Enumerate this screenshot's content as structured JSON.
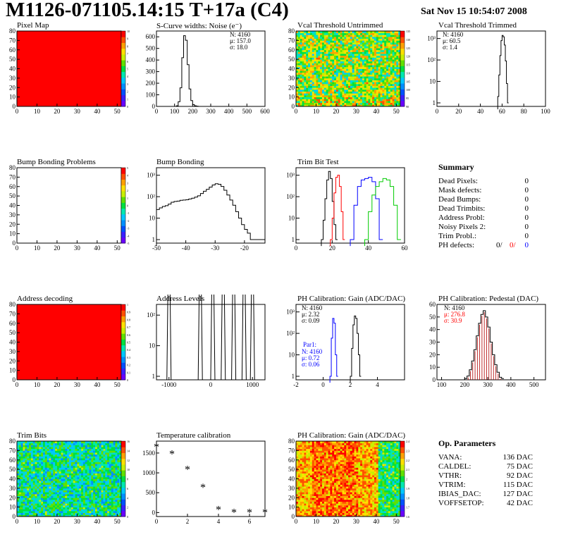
{
  "header": {
    "title": "M1126-071105.14:15 T+17a (C4)",
    "date": "Sat Nov 15 10:54:07 2008"
  },
  "colors": {
    "fill_red": "#ff0000",
    "series_black": "#000000",
    "series_red": "#ff0000",
    "series_blue": "#0000ff",
    "series_green": "#00cc00",
    "pedestal_hatch": "#b00000"
  },
  "colz_ticks": {
    "pixel_map": [
      "0",
      "1",
      "2",
      "3",
      "4",
      "5",
      "6",
      "7",
      "8",
      "9",
      "10"
    ],
    "vcal": [
      "90",
      "95",
      "100",
      "105",
      "110",
      "115",
      "120",
      "125",
      "130",
      "135"
    ],
    "bump": [
      "-5",
      "-4",
      "-3",
      "-2",
      "-1",
      "0",
      "1",
      "2",
      "3",
      "4",
      "5"
    ],
    "address": [
      "0",
      "0.1",
      "0.2",
      "0.3",
      "0.4",
      "0.5",
      "0.6",
      "0.7",
      "0.8",
      "0.9",
      "1"
    ],
    "trim_bits": [
      "0",
      "2",
      "4",
      "6",
      "8",
      "10",
      "12",
      "14",
      "16"
    ],
    "gain": [
      "1.6",
      "1.7",
      "1.8",
      "1.9",
      "2",
      "2.1",
      "2.2",
      "2.3",
      "2.4"
    ]
  },
  "summary": {
    "title": "Summary",
    "items": [
      {
        "label": "Dead Pixels:",
        "value": "0"
      },
      {
        "label": "Mask defects:",
        "value": "0"
      },
      {
        "label": "Dead Bumps:",
        "value": "0"
      },
      {
        "label": "Dead Trimbits:",
        "value": "0"
      },
      {
        "label": "Address Probl:",
        "value": "0"
      },
      {
        "label": "Noisy Pixels 2:",
        "value": "0"
      },
      {
        "label": "Trim Probl.:",
        "value": "0"
      }
    ],
    "ph_label": "PH defects:",
    "ph_values": [
      "0/",
      "0/",
      "0"
    ]
  },
  "op_params": {
    "title": "Op. Parameters",
    "items": [
      {
        "label": "VANA:",
        "value": "136 DAC"
      },
      {
        "label": "CALDEL:",
        "value": "75 DAC"
      },
      {
        "label": "VTHR:",
        "value": "92 DAC"
      },
      {
        "label": "VTRIM:",
        "value": "115 DAC"
      },
      {
        "label": "IBIAS_DAC:",
        "value": "127 DAC"
      },
      {
        "label": "VOFFSETOP:",
        "value": "42 DAC"
      }
    ]
  },
  "chart_data": [
    {
      "id": "pixel_map",
      "type": "heatmap",
      "title": "Pixel Map",
      "xlim": [
        0,
        52
      ],
      "ylim": [
        0,
        80
      ],
      "xticks": [
        "0",
        "10",
        "20",
        "30",
        "40",
        "50"
      ],
      "yticks": [
        "0",
        "10",
        "20",
        "30",
        "40",
        "50",
        "60",
        "70",
        "80"
      ],
      "zlim": [
        0,
        10
      ],
      "fill": "uniform maximum (all pixels 10)"
    },
    {
      "id": "scurve",
      "type": "line",
      "title": "S-Curve widths: Noise (e⁻)",
      "xlim": [
        0,
        600
      ],
      "ylim": [
        0,
        650
      ],
      "xticks": [
        "0",
        "100",
        "200",
        "300",
        "400",
        "500",
        "600"
      ],
      "yticks": [
        "0",
        "100",
        "200",
        "300",
        "400",
        "500",
        "600"
      ],
      "stats": {
        "N": "4160",
        "mean": "157.0",
        "sigma": "18.0"
      },
      "x": [
        100,
        110,
        120,
        130,
        140,
        150,
        160,
        170,
        180,
        190,
        200,
        210,
        220,
        230
      ],
      "values": [
        0,
        5,
        40,
        160,
        420,
        610,
        570,
        360,
        150,
        50,
        15,
        5,
        2,
        0
      ]
    },
    {
      "id": "vcal",
      "type": "heatmap",
      "title": "Vcal Threshold Untrimmed",
      "xlim": [
        0,
        52
      ],
      "ylim": [
        0,
        80
      ],
      "xticks": [
        "0",
        "10",
        "20",
        "30",
        "40",
        "50"
      ],
      "yticks": [
        "0",
        "10",
        "20",
        "30",
        "40",
        "50",
        "60",
        "70",
        "80"
      ],
      "zlim": [
        90,
        135
      ],
      "fill": "noisy, mostly 100-125"
    },
    {
      "id": "vcal_trim",
      "type": "line",
      "title": "Vcal Threshold Trimmed",
      "xlim": [
        0,
        100
      ],
      "log_y": true,
      "xticks": [
        "0",
        "20",
        "40",
        "60",
        "80",
        "100"
      ],
      "yticks": [
        "1",
        "10",
        "10²",
        "10³"
      ],
      "stats": {
        "N": "4160",
        "mean": "60.5",
        "sigma": "1.4"
      },
      "x": [
        56,
        57,
        58,
        59,
        60,
        61,
        62,
        63,
        64,
        65
      ],
      "values": [
        2,
        20,
        160,
        800,
        1400,
        1200,
        500,
        90,
        8,
        1
      ]
    },
    {
      "id": "bump_problems",
      "type": "heatmap",
      "title": "Bump Bonding Problems",
      "xlim": [
        0,
        52
      ],
      "ylim": [
        0,
        80
      ],
      "xticks": [
        "0",
        "10",
        "20",
        "30",
        "40",
        "50"
      ],
      "yticks": [
        "0",
        "10",
        "20",
        "30",
        "40",
        "50",
        "60",
        "70",
        "80"
      ],
      "zlim": [
        -5,
        5
      ],
      "fill": "empty"
    },
    {
      "id": "bump_bonding",
      "type": "line",
      "title": "Bump Bonding",
      "xlim": [
        -50,
        -13
      ],
      "log_y": true,
      "xticks": [
        "-50",
        "-40",
        "-30",
        "-20"
      ],
      "yticks": [
        "1",
        "10",
        "10²",
        "10³"
      ],
      "x": [
        -50,
        -49,
        -48,
        -47,
        -46,
        -45,
        -44,
        -43,
        -42,
        -41,
        -40,
        -39,
        -38,
        -37,
        -36,
        -35,
        -34,
        -33,
        -32,
        -31,
        -30,
        -29,
        -28,
        -27,
        -26,
        -25,
        -24,
        -23,
        -22,
        -21,
        -20,
        -19,
        -18,
        -17,
        -16,
        -15,
        -14
      ],
      "values": [
        25,
        30,
        35,
        38,
        45,
        55,
        60,
        62,
        68,
        70,
        72,
        78,
        85,
        95,
        110,
        140,
        180,
        220,
        280,
        350,
        400,
        380,
        300,
        200,
        120,
        70,
        40,
        20,
        10,
        5,
        3,
        2,
        1,
        1,
        1,
        1,
        1
      ]
    },
    {
      "id": "trim_bit",
      "type": "line",
      "title": "Trim Bit Test",
      "xlim": [
        0,
        60
      ],
      "log_y": true,
      "xticks": [
        "0",
        "20",
        "40",
        "60"
      ],
      "yticks": [
        "1",
        "10",
        "10²",
        "10³"
      ],
      "series": [
        {
          "color": "#000000",
          "x": [
            14,
            15,
            16,
            17,
            18,
            19,
            20,
            21,
            22
          ],
          "values": [
            1,
            8,
            80,
            600,
            1500,
            700,
            60,
            5,
            1
          ]
        },
        {
          "color": "#ff0000",
          "x": [
            19,
            20,
            21,
            22,
            23,
            24,
            25,
            26
          ],
          "values": [
            1,
            10,
            150,
            800,
            1000,
            300,
            20,
            1
          ]
        },
        {
          "color": "#0000ff",
          "x": [
            30,
            32,
            34,
            36,
            38,
            40,
            42,
            44,
            46
          ],
          "values": [
            1,
            40,
            300,
            600,
            700,
            800,
            500,
            80,
            1
          ]
        },
        {
          "color": "#00cc00",
          "x": [
            38,
            40,
            42,
            44,
            46,
            48,
            50,
            52,
            54,
            56
          ],
          "values": [
            1,
            20,
            120,
            300,
            500,
            700,
            600,
            300,
            40,
            1
          ]
        }
      ]
    },
    {
      "id": "address_decoding",
      "type": "heatmap",
      "title": "Address decoding",
      "xlim": [
        0,
        52
      ],
      "ylim": [
        0,
        80
      ],
      "xticks": [
        "0",
        "10",
        "20",
        "30",
        "40",
        "50"
      ],
      "yticks": [
        "0",
        "10",
        "20",
        "30",
        "40",
        "50",
        "60",
        "70",
        "80"
      ],
      "zlim": [
        0,
        1
      ],
      "fill": "uniform 1"
    },
    {
      "id": "address_levels",
      "type": "line",
      "title": "Address Levels",
      "xlim": [
        -1300,
        1300
      ],
      "log_y": true,
      "xticks": [
        "-1000",
        "0",
        "1000"
      ],
      "yticks": [
        "1",
        "10",
        "10²"
      ],
      "peaks_x": [
        -1000,
        -250,
        50,
        300,
        550,
        800,
        1000
      ],
      "peak_values": [
        800,
        700,
        600,
        700,
        650,
        700,
        650
      ]
    },
    {
      "id": "ph_gain",
      "type": "line",
      "title": "PH Calibration: Gain (ADC/DAC)",
      "xlim": [
        -2,
        6
      ],
      "log_y": true,
      "xticks": [
        "-2",
        "0",
        "2",
        "4"
      ],
      "yticks": [
        "1",
        "10",
        "10²",
        "10³"
      ],
      "stats": {
        "N": "4160",
        "mean": "2.32",
        "sigma": "0.09"
      },
      "stats2": {
        "title": "Par1:",
        "N": "4160",
        "mean": "0.72",
        "sigma": "0.06"
      },
      "series": [
        {
          "color": "#000000",
          "x": [
            2.0,
            2.1,
            2.2,
            2.3,
            2.4,
            2.5,
            2.6,
            2.7
          ],
          "values": [
            1,
            20,
            250,
            650,
            500,
            100,
            10,
            1
          ]
        },
        {
          "color": "#0000ff",
          "x": [
            0.5,
            0.6,
            0.7,
            0.8,
            0.9,
            1.0
          ],
          "values": [
            1,
            60,
            500,
            300,
            10,
            1
          ]
        }
      ]
    },
    {
      "id": "ph_pedestal",
      "type": "line",
      "title": "PH Calibration: Pedestal (DAC)",
      "xlim": [
        80,
        550
      ],
      "ylim": [
        0,
        60
      ],
      "xticks": [
        "100",
        "200",
        "300",
        "400",
        "500"
      ],
      "yticks": [
        "0",
        "10",
        "20",
        "30",
        "40",
        "50",
        "60"
      ],
      "stats": {
        "N": "4160",
        "mean": "276.8",
        "sigma": "30.9"
      },
      "x": [
        200,
        210,
        220,
        230,
        240,
        250,
        260,
        270,
        280,
        290,
        300,
        310,
        320,
        330,
        340,
        350,
        360
      ],
      "values": [
        1,
        3,
        8,
        15,
        24,
        35,
        45,
        52,
        55,
        50,
        42,
        30,
        20,
        12,
        6,
        2,
        1
      ]
    },
    {
      "id": "trim_bits",
      "type": "heatmap",
      "title": "Trim Bits",
      "xlim": [
        0,
        52
      ],
      "ylim": [
        0,
        80
      ],
      "xticks": [
        "0",
        "10",
        "20",
        "30",
        "40",
        "50"
      ],
      "yticks": [
        "0",
        "10",
        "20",
        "30",
        "40",
        "50",
        "60",
        "70",
        "80"
      ],
      "zlim": [
        0,
        16
      ],
      "fill": "mostly 6-10"
    },
    {
      "id": "temperature",
      "type": "scatter",
      "title": "Temperature calibration",
      "xlim": [
        0,
        7
      ],
      "ylim": [
        -100,
        1800
      ],
      "xticks": [
        "0",
        "2",
        "4",
        "6"
      ],
      "yticks": [
        "0",
        "500",
        "1000",
        "1500"
      ],
      "x": [
        0,
        1,
        2,
        3,
        4,
        5,
        6,
        7
      ],
      "values": [
        1650,
        1470,
        1080,
        630,
        70,
        0,
        0,
        0
      ]
    },
    {
      "id": "gain_map",
      "type": "heatmap",
      "title": "PH Calibration: Gain (ADC/DAC)",
      "xlim": [
        0,
        52
      ],
      "ylim": [
        0,
        80
      ],
      "xticks": [
        "0",
        "10",
        "20",
        "30",
        "40",
        "50"
      ],
      "yticks": [
        "0",
        "10",
        "20",
        "30",
        "40",
        "50",
        "60",
        "70",
        "80"
      ],
      "zlim": [
        1.6,
        2.4
      ],
      "fill": "red-orange, yellow-green on right"
    }
  ]
}
